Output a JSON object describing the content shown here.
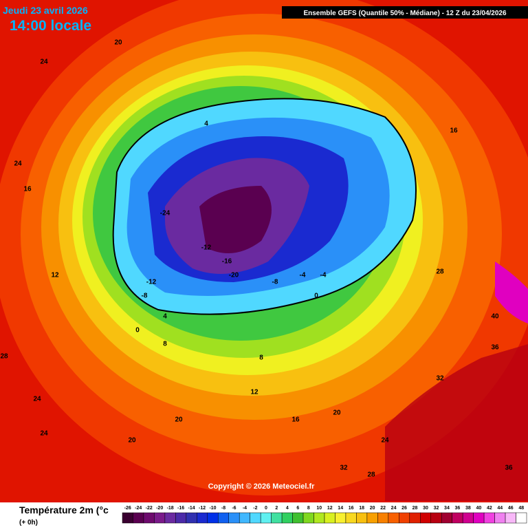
{
  "header": {
    "date": "Jeudi 23 avril 2026",
    "time": "14:00 locale",
    "model": "Ensemble GEFS  (Quantile 50% - Médiane) - 12 Z du 23/04/2026"
  },
  "copyright": "Copyright © 2026 Meteociel.fr",
  "legend": {
    "title": "Température 2m (°c",
    "lead": "(+ 0h)",
    "scale": [
      -26,
      -24,
      -22,
      -20,
      -18,
      -16,
      -14,
      -12,
      -10,
      -8,
      -6,
      -4,
      -2,
      0,
      2,
      4,
      6,
      8,
      10,
      12,
      14,
      16,
      18,
      20,
      22,
      24,
      26,
      28,
      30,
      32,
      34,
      36,
      38,
      40,
      42,
      44,
      46,
      48
    ],
    "colors": [
      "#3a0030",
      "#5a0050",
      "#6e0a6e",
      "#7a1a8a",
      "#6a2aa0",
      "#4b2aa8",
      "#3030b0",
      "#1a2ad0",
      "#0030e8",
      "#1060f0",
      "#2a90f8",
      "#40b8ff",
      "#50d8ff",
      "#60f0f0",
      "#40e0a0",
      "#30d060",
      "#40c030",
      "#80d820",
      "#b0e820",
      "#d8f020",
      "#f8f030",
      "#f8d820",
      "#f8c010",
      "#f8a000",
      "#f88000",
      "#f86000",
      "#f04000",
      "#e02000",
      "#d00000",
      "#b80010",
      "#a00030",
      "#c00060",
      "#d00090",
      "#e000c0",
      "#f040e0",
      "#f080f0",
      "#f8b8f8",
      "#ffffff"
    ]
  },
  "labels": [
    "24",
    "20",
    "24",
    "28",
    "24",
    "24",
    "20",
    "16",
    "12",
    "8",
    "4",
    "0",
    "-4",
    "-8",
    "-12",
    "-16",
    "-20",
    "-24",
    "-12",
    "-8",
    "-4",
    "0",
    "4",
    "8",
    "12",
    "16",
    "20",
    "28",
    "32",
    "36",
    "40",
    "32",
    "28",
    "36",
    "24",
    "20",
    "16"
  ]
}
